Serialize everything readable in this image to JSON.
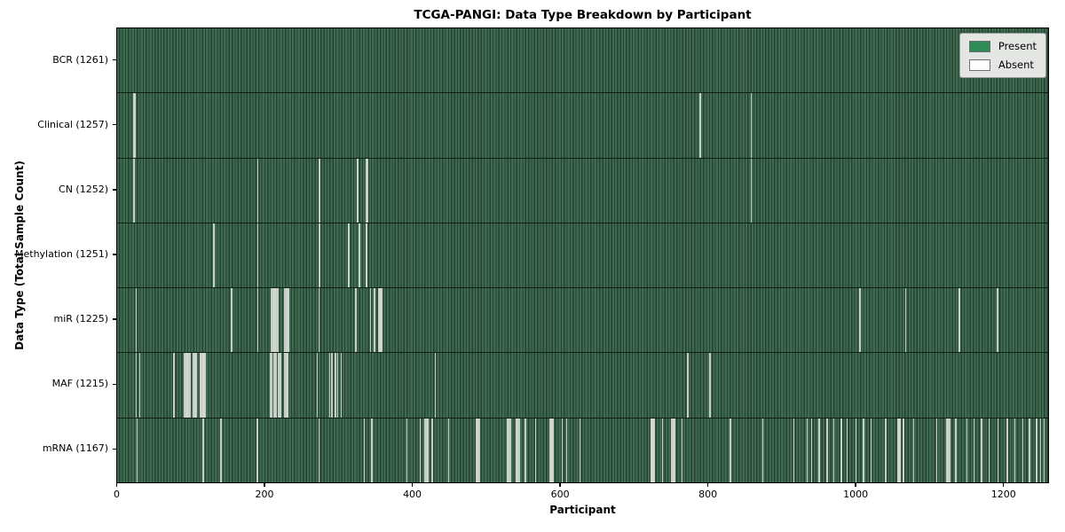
{
  "title": "TCGA-PANGI: Data Type Breakdown by Participant",
  "chart_data": {
    "type": "heatmap",
    "title": "TCGA-PANGI: Data Type Breakdown by Participant",
    "xlabel": "Participant",
    "ylabel": "Data Type (Total Sample Count)",
    "xlim": [
      0,
      1261
    ],
    "x_ticks": [
      0,
      200,
      400,
      600,
      800,
      1000,
      1200
    ],
    "total_participants": 1261,
    "grid": false,
    "colors": {
      "present": "#2e8b57",
      "absent": "#ffffff"
    },
    "legend": {
      "position": "upper right",
      "entries": [
        {
          "label": "Present",
          "color": "#2e8b57"
        },
        {
          "label": "Absent",
          "color": "#ffffff"
        }
      ]
    },
    "rows": [
      {
        "data_type": "BCR",
        "label": "BCR (1261)",
        "present_count": 1261,
        "absent_participants": []
      },
      {
        "data_type": "Clinical",
        "label": "Clinical (1257)",
        "present_count": 1257,
        "absent_participants": [
          22,
          23,
          789,
          858
        ]
      },
      {
        "data_type": "CN",
        "label": "CN (1252)",
        "present_count": 1252,
        "absent_participants": [
          22,
          190,
          273,
          274,
          324,
          325,
          337,
          338,
          858
        ]
      },
      {
        "data_type": "Methylation",
        "label": "Methylation (1251)",
        "present_count": 1251,
        "absent_participants": [
          130,
          190,
          273,
          274,
          312,
          313,
          327,
          328,
          336,
          337
        ]
      },
      {
        "data_type": "miR",
        "label": "miR (1225)",
        "present_count": 1225,
        "absent_participants": [
          25,
          154,
          190,
          208,
          209,
          210,
          211,
          212,
          213,
          214,
          215,
          216,
          217,
          226,
          227,
          228,
          229,
          230,
          231,
          273,
          322,
          323,
          342,
          348,
          354,
          355,
          356,
          357,
          358,
          1005,
          1006,
          1067,
          1139,
          1140,
          1191,
          1192
        ]
      },
      {
        "data_type": "MAF",
        "label": "MAF (1215)",
        "present_count": 1215,
        "absent_participants": [
          25,
          30,
          76,
          90,
          91,
          92,
          93,
          94,
          95,
          96,
          97,
          98,
          102,
          103,
          104,
          105,
          106,
          112,
          113,
          114,
          115,
          116,
          117,
          118,
          207,
          209,
          211,
          213,
          215,
          217,
          219,
          221,
          226,
          227,
          228,
          229,
          230,
          270,
          287,
          290,
          295,
          298,
          303,
          430,
          772,
          802
        ]
      },
      {
        "data_type": "mRNA",
        "label": "mRNA (1167)",
        "present_count": 1167,
        "absent_participants": [
          26,
          116,
          140,
          189,
          273,
          334,
          344,
          392,
          410,
          416,
          417,
          418,
          419,
          420,
          426,
          448,
          486,
          487,
          488,
          489,
          490,
          528,
          529,
          530,
          531,
          532,
          540,
          541,
          542,
          543,
          544,
          552,
          566,
          586,
          587,
          588,
          589,
          590,
          602,
          608,
          626,
          722,
          723,
          724,
          725,
          726,
          727,
          738,
          750,
          751,
          752,
          753,
          754,
          764,
          830,
          874,
          916,
          934,
          940,
          950,
          961,
          970,
          980,
          988,
          1000,
          1010,
          1020,
          1040,
          1057,
          1058,
          1059,
          1060,
          1064,
          1078,
          1109,
          1123,
          1124,
          1125,
          1126,
          1127,
          1135,
          1150,
          1160,
          1170,
          1180,
          1192,
          1205,
          1215,
          1226,
          1235,
          1244,
          1245,
          1250,
          1255
        ]
      }
    ]
  }
}
